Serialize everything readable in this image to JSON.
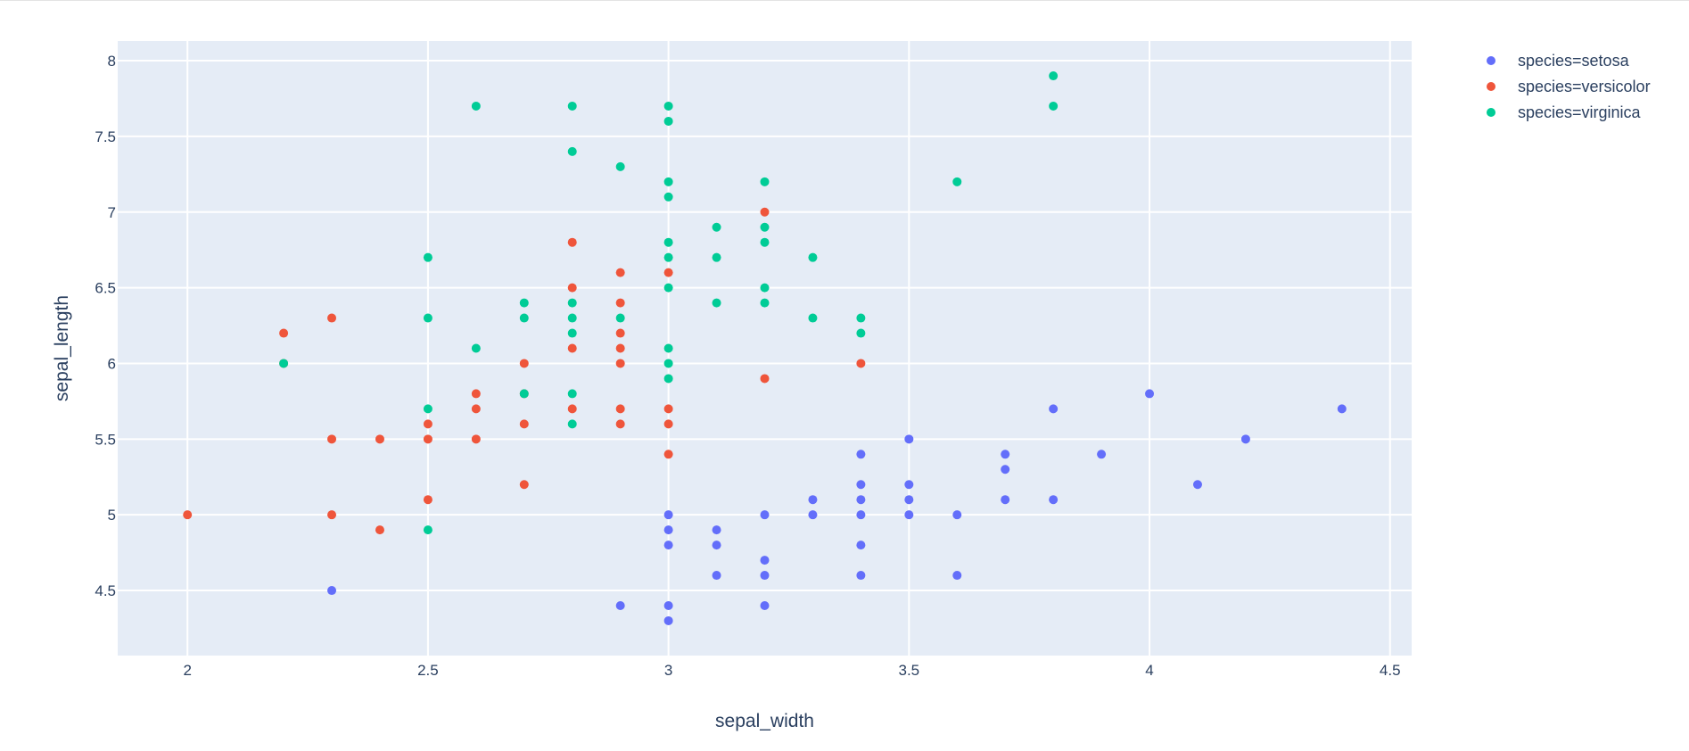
{
  "chart_data": {
    "type": "scatter",
    "xlabel": "sepal_width",
    "ylabel": "sepal_length",
    "xlim": [
      1.855,
      4.545
    ],
    "ylim": [
      4.07,
      8.13
    ],
    "x_ticks": [
      2,
      2.5,
      3,
      3.5,
      4,
      4.5
    ],
    "y_ticks": [
      4.5,
      5,
      5.5,
      6,
      6.5,
      7,
      7.5,
      8
    ],
    "x_tick_labels": [
      "2",
      "2.5",
      "3",
      "3.5",
      "4",
      "4.5"
    ],
    "y_tick_labels": [
      "4.5",
      "5",
      "5.5",
      "6",
      "6.5",
      "7",
      "7.5",
      "8"
    ],
    "grid": true,
    "legend_position": "top-right",
    "plot_background": "#e5ecf6",
    "series": [
      {
        "name": "species=setosa",
        "color": "#636efa",
        "points": [
          [
            3.0,
            4.3
          ],
          [
            3.0,
            4.4
          ],
          [
            2.9,
            4.4
          ],
          [
            3.2,
            4.4
          ],
          [
            2.3,
            4.5
          ],
          [
            3.1,
            4.6
          ],
          [
            3.2,
            4.6
          ],
          [
            3.4,
            4.6
          ],
          [
            3.6,
            4.6
          ],
          [
            3.2,
            4.7
          ],
          [
            3.0,
            4.8
          ],
          [
            3.1,
            4.8
          ],
          [
            3.4,
            4.8
          ],
          [
            3.0,
            4.9
          ],
          [
            3.1,
            4.9
          ],
          [
            3.0,
            5.0
          ],
          [
            3.2,
            5.0
          ],
          [
            3.3,
            5.0
          ],
          [
            3.4,
            5.0
          ],
          [
            3.5,
            5.0
          ],
          [
            3.6,
            5.0
          ],
          [
            3.3,
            5.1
          ],
          [
            3.4,
            5.1
          ],
          [
            3.5,
            5.1
          ],
          [
            3.7,
            5.1
          ],
          [
            3.8,
            5.1
          ],
          [
            3.4,
            5.2
          ],
          [
            3.5,
            5.2
          ],
          [
            4.1,
            5.2
          ],
          [
            3.7,
            5.3
          ],
          [
            3.4,
            5.4
          ],
          [
            3.7,
            5.4
          ],
          [
            3.9,
            5.4
          ],
          [
            3.5,
            5.5
          ],
          [
            4.2,
            5.5
          ],
          [
            3.8,
            5.7
          ],
          [
            4.4,
            5.7
          ],
          [
            4.0,
            5.8
          ]
        ]
      },
      {
        "name": "species=versicolor",
        "color": "#ef553b",
        "points": [
          [
            2.4,
            4.9
          ],
          [
            2.0,
            5.0
          ],
          [
            2.3,
            5.0
          ],
          [
            2.5,
            5.1
          ],
          [
            2.7,
            5.2
          ],
          [
            3.0,
            5.4
          ],
          [
            2.3,
            5.5
          ],
          [
            2.4,
            5.5
          ],
          [
            2.5,
            5.5
          ],
          [
            2.6,
            5.5
          ],
          [
            2.5,
            5.6
          ],
          [
            2.7,
            5.6
          ],
          [
            2.9,
            5.6
          ],
          [
            3.0,
            5.6
          ],
          [
            2.6,
            5.7
          ],
          [
            2.8,
            5.7
          ],
          [
            2.9,
            5.7
          ],
          [
            3.0,
            5.7
          ],
          [
            2.6,
            5.8
          ],
          [
            2.7,
            5.8
          ],
          [
            3.2,
            5.9
          ],
          [
            2.2,
            6.0
          ],
          [
            2.7,
            6.0
          ],
          [
            2.9,
            6.0
          ],
          [
            3.4,
            6.0
          ],
          [
            2.8,
            6.1
          ],
          [
            2.9,
            6.1
          ],
          [
            2.2,
            6.2
          ],
          [
            2.9,
            6.2
          ],
          [
            2.3,
            6.3
          ],
          [
            2.9,
            6.4
          ],
          [
            2.8,
            6.5
          ],
          [
            2.9,
            6.6
          ],
          [
            3.0,
            6.6
          ],
          [
            2.8,
            6.8
          ],
          [
            3.2,
            7.0
          ]
        ]
      },
      {
        "name": "species=virginica",
        "color": "#00cc96",
        "points": [
          [
            2.5,
            4.9
          ],
          [
            2.5,
            5.7
          ],
          [
            2.8,
            5.6
          ],
          [
            2.7,
            5.8
          ],
          [
            2.8,
            5.8
          ],
          [
            3.0,
            5.9
          ],
          [
            2.2,
            6.0
          ],
          [
            3.0,
            6.0
          ],
          [
            2.6,
            6.1
          ],
          [
            3.0,
            6.1
          ],
          [
            2.8,
            6.2
          ],
          [
            3.4,
            6.2
          ],
          [
            2.5,
            6.3
          ],
          [
            2.7,
            6.3
          ],
          [
            2.8,
            6.3
          ],
          [
            2.9,
            6.3
          ],
          [
            3.3,
            6.3
          ],
          [
            3.4,
            6.3
          ],
          [
            2.7,
            6.4
          ],
          [
            2.8,
            6.4
          ],
          [
            3.1,
            6.4
          ],
          [
            3.2,
            6.4
          ],
          [
            3.0,
            6.5
          ],
          [
            3.2,
            6.5
          ],
          [
            2.5,
            6.7
          ],
          [
            3.0,
            6.7
          ],
          [
            3.1,
            6.7
          ],
          [
            3.3,
            6.7
          ],
          [
            3.0,
            6.8
          ],
          [
            3.2,
            6.8
          ],
          [
            3.1,
            6.9
          ],
          [
            3.2,
            6.9
          ],
          [
            3.0,
            7.1
          ],
          [
            3.0,
            7.2
          ],
          [
            3.2,
            7.2
          ],
          [
            3.6,
            7.2
          ],
          [
            2.9,
            7.3
          ],
          [
            2.8,
            7.4
          ],
          [
            3.0,
            7.6
          ],
          [
            2.6,
            7.7
          ],
          [
            2.8,
            7.7
          ],
          [
            3.0,
            7.7
          ],
          [
            3.8,
            7.7
          ],
          [
            3.8,
            7.9
          ]
        ]
      }
    ]
  }
}
